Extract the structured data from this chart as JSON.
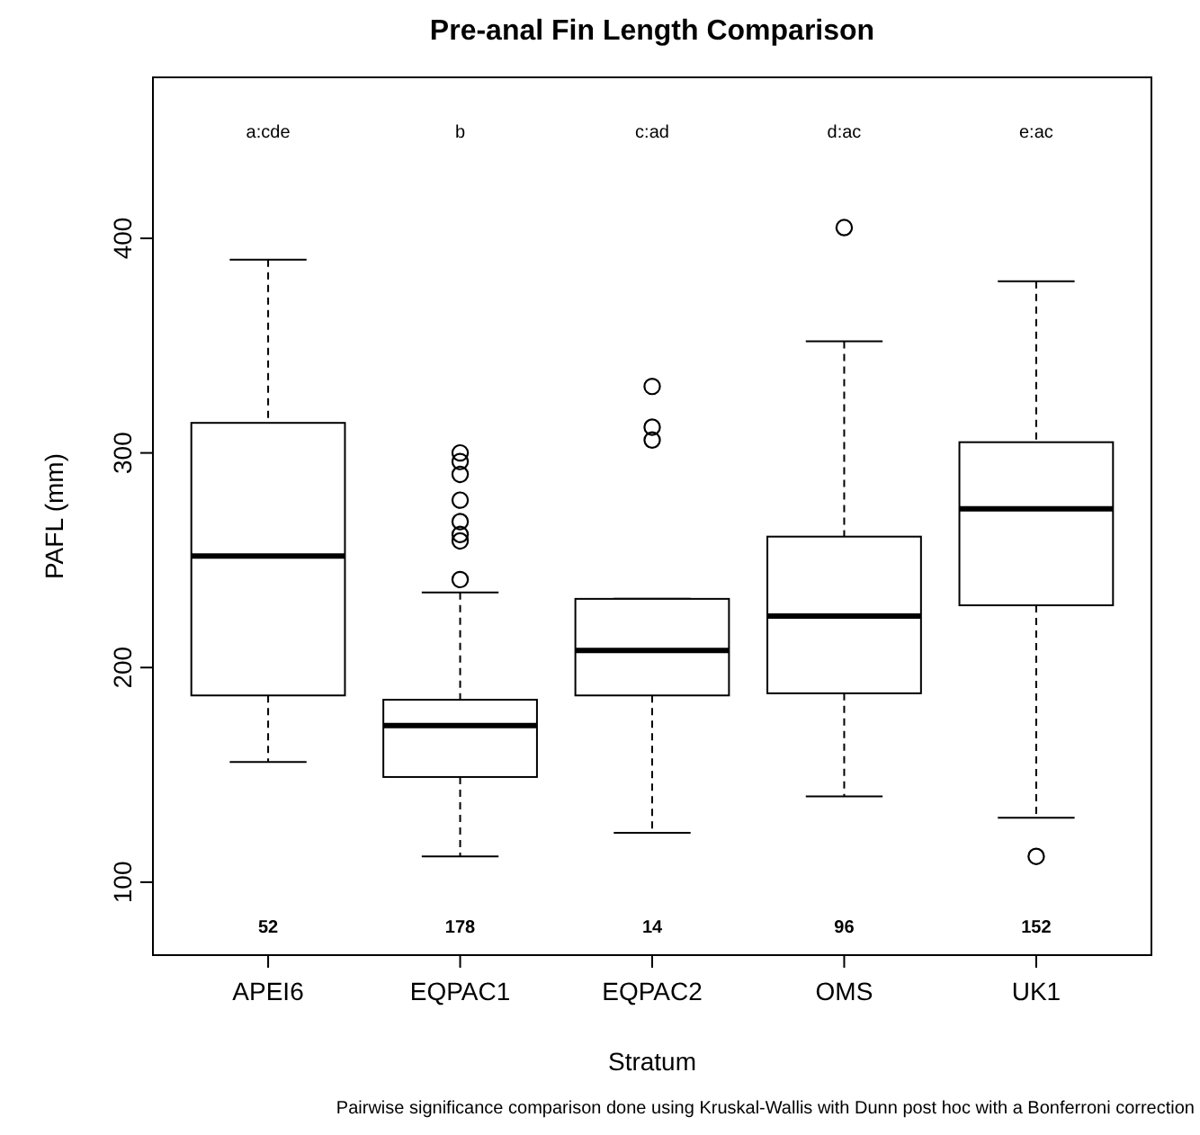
{
  "chart_data": {
    "type": "box",
    "title": "Pre-anal Fin Length Comparison",
    "xlabel": "Stratum",
    "ylabel": "PAFL (mm)",
    "categories": [
      "APEI6",
      "EQPAC1",
      "EQPAC2",
      "OMS",
      "UK1"
    ],
    "boxes": [
      {
        "low": 156,
        "q1": 187,
        "median": 252,
        "q3": 314,
        "high": 390
      },
      {
        "low": 112,
        "q1": 149,
        "median": 173,
        "q3": 185,
        "high": 235,
        "outliers": [
          300,
          296,
          290,
          278,
          268,
          262,
          259,
          241
        ]
      },
      {
        "low": 123,
        "q1": 187,
        "median": 208,
        "q3": 232,
        "high": 232,
        "outliers": [
          331,
          312,
          306
        ]
      },
      {
        "low": 140,
        "q1": 188,
        "median": 224,
        "q3": 261,
        "high": 352,
        "outliers": [
          405
        ]
      },
      {
        "low": 130,
        "q1": 229,
        "median": 274,
        "q3": 305,
        "high": 380,
        "outliers": [
          112
        ]
      }
    ],
    "ylim": [
      66,
      475
    ],
    "yticks": [
      100,
      200,
      300,
      400
    ],
    "grid": false,
    "line_style": "dashed",
    "marker": "circle",
    "annotations": [
      "a:cde",
      "b",
      "c:ad",
      "d:ac",
      "e:ac",
      "52",
      "178",
      "14",
      "96",
      "152",
      "Pairwise significance comparison done using Kruskal-Wallis with Dunn post hoc with a Bonferroni correction"
    ]
  }
}
